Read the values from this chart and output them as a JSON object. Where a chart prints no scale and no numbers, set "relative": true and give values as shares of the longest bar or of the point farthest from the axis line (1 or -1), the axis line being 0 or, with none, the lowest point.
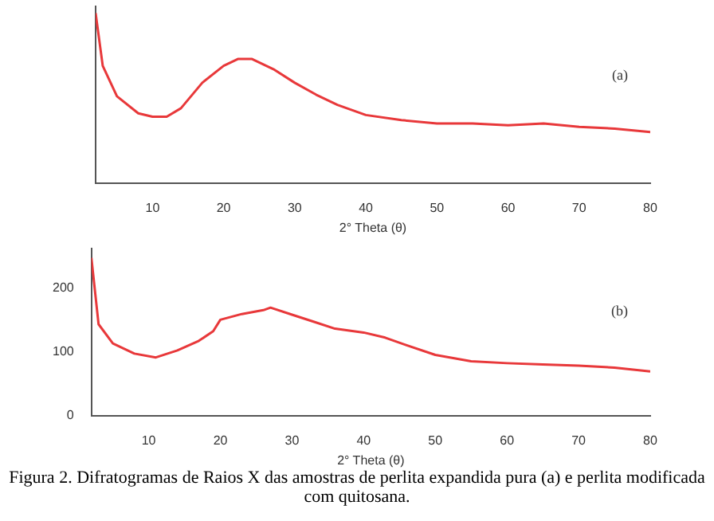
{
  "chart_data": [
    {
      "type": "line",
      "xlabel": "2° Theta (θ)",
      "x": [
        2,
        3,
        5,
        8,
        10,
        12,
        14,
        17,
        20,
        22,
        24,
        27,
        30,
        33,
        36,
        40,
        45,
        50,
        55,
        60,
        65,
        70,
        75,
        80
      ],
      "series": [
        {
          "color": "#e8383a",
          "values": [
            1,
            0.69,
            0.51,
            0.41,
            0.39,
            0.39,
            0.44,
            0.59,
            0.69,
            0.73,
            0.73,
            0.67,
            0.59,
            0.52,
            0.46,
            0.4,
            0.37,
            0.35,
            0.35,
            0.34,
            0.35,
            0.33,
            0.32,
            0.3
          ]
        }
      ],
      "xlim": [
        2,
        80
      ],
      "xticks": [
        10,
        20,
        30,
        40,
        50,
        60,
        70,
        80
      ],
      "relative": true,
      "marker": "none",
      "annotations": [
        "(a)"
      ]
    },
    {
      "type": "line",
      "xlabel": "2° Theta (θ)",
      "x": [
        2,
        3,
        5,
        8,
        11,
        14,
        17,
        19,
        20,
        23,
        26,
        27,
        30,
        33,
        36,
        40,
        43,
        46,
        50,
        55,
        60,
        65,
        70,
        75,
        80
      ],
      "series": [
        {
          "color": "#e8383a",
          "values": [
            247,
            143,
            113,
            97,
            91,
            102,
            117,
            132,
            150,
            159,
            165,
            169,
            158,
            147,
            136,
            130,
            122,
            110,
            95,
            85,
            82,
            80,
            78,
            75,
            69
          ]
        }
      ],
      "xlim": [
        2,
        80
      ],
      "xticks": [
        10,
        20,
        30,
        40,
        50,
        60,
        70,
        80
      ],
      "ylim": [
        0,
        262
      ],
      "yticks": [
        0,
        100,
        200
      ],
      "marker": "none",
      "annotations": [
        "(b)",
        "Figura 2. Difratogramas de Raios X das amostras de perlita expandida pura (a) e perlita modificada com quitosana."
      ]
    }
  ]
}
